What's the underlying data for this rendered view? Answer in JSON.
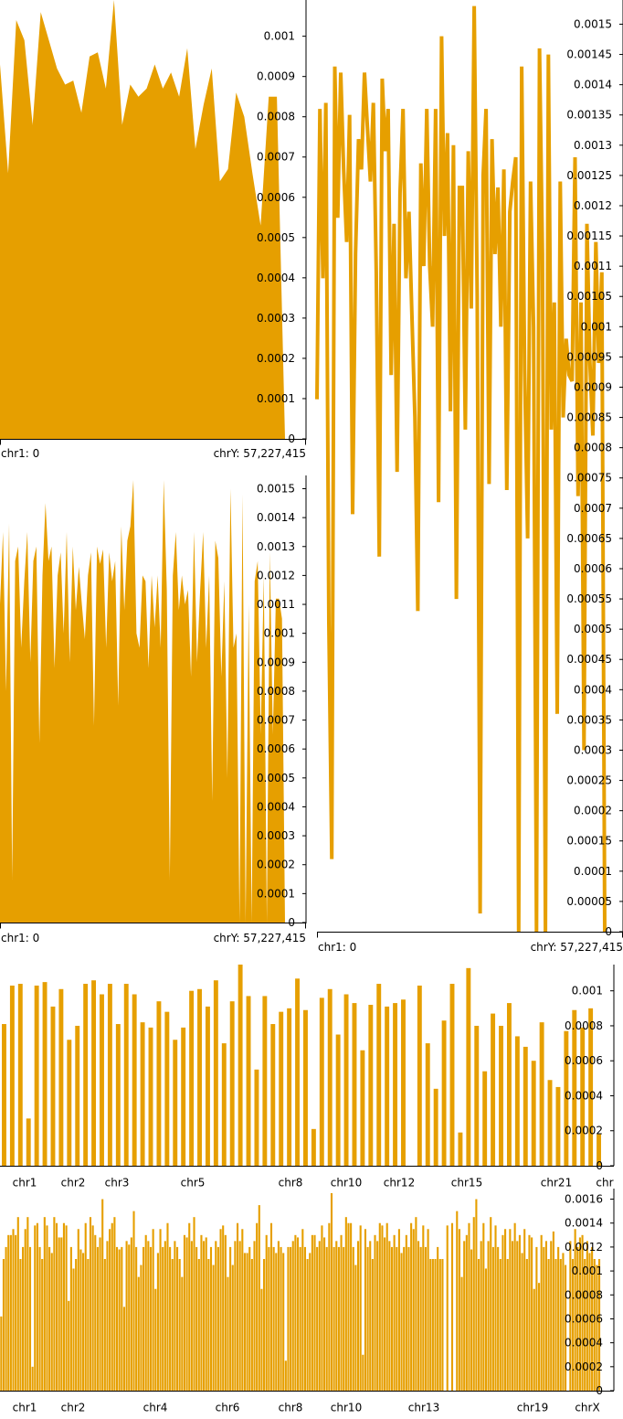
{
  "fill_color": "#e69f00",
  "axis_color": "#000000",
  "chart_data": [
    {
      "id": "area-top-left",
      "type": "area",
      "title": "",
      "xlabel": "",
      "ylabel": "",
      "ylim": [
        0,
        0.00109
      ],
      "x_range_labels": {
        "start": "chr1: 0",
        "end": "chrY: 57,227,415"
      },
      "y_ticks": [
        0,
        0.0001,
        0.0002,
        0.0003,
        0.0004,
        0.0005,
        0.0006,
        0.0007,
        0.0008,
        0.0009,
        0.001
      ],
      "y_tick_labels": [
        "0",
        "0.0001",
        "0.0002",
        "0.0003",
        "0.0004",
        "0.0005",
        "0.0006",
        "0.0007",
        "0.0008",
        "0.0009",
        "0.001"
      ],
      "values": [
        0.00093,
        0.00066,
        0.00104,
        0.00099,
        0.00078,
        0.00106,
        0.00099,
        0.00092,
        0.00088,
        0.00089,
        0.00081,
        0.00095,
        0.00096,
        0.00087,
        0.00109,
        0.00078,
        0.00088,
        0.00085,
        0.00087,
        0.00093,
        0.00087,
        0.00091,
        0.00085,
        0.00097,
        0.00072,
        0.00083,
        0.00092,
        0.00064,
        0.00067,
        0.00086,
        0.0008,
        0.00066,
        0.00053,
        0.00085,
        0.00085,
        0.0
      ]
    },
    {
      "id": "area-mid-left",
      "type": "area",
      "title": "",
      "xlabel": "",
      "ylabel": "",
      "ylim": [
        0,
        0.00153
      ],
      "x_range_labels": {
        "start": "chr1: 0",
        "end": "chrY: 57,227,415"
      },
      "y_ticks": [
        0,
        0.0001,
        0.0002,
        0.0003,
        0.0004,
        0.0005,
        0.0006,
        0.0007,
        0.0008,
        0.0009,
        0.001,
        0.0011,
        0.0012,
        0.0013,
        0.0014,
        0.0015
      ],
      "y_tick_labels": [
        "0",
        "0.0001",
        "0.0002",
        "0.0003",
        "0.0004",
        "0.0005",
        "0.0006",
        "0.0007",
        "0.0008",
        "0.0009",
        "0.001",
        "0.0011",
        "0.0012",
        "0.0013",
        "0.0014",
        "0.0015"
      ],
      "values": [
        0.0011,
        0.00135,
        0.0008,
        0.00138,
        0.00015,
        0.00125,
        0.0013,
        0.00095,
        0.00118,
        0.00135,
        0.0009,
        0.00125,
        0.0013,
        0.00062,
        0.0012,
        0.00145,
        0.00125,
        0.0013,
        0.00088,
        0.0012,
        0.00128,
        0.001,
        0.00135,
        0.0009,
        0.0013,
        0.00108,
        0.00123,
        0.0011,
        0.00098,
        0.0012,
        0.00128,
        0.00068,
        0.0013,
        0.00124,
        0.00129,
        0.00095,
        0.00128,
        0.00118,
        0.00125,
        0.00075,
        0.00137,
        0.00108,
        0.00132,
        0.00137,
        0.00153,
        0.001,
        0.00095,
        0.0012,
        0.00118,
        0.00088,
        0.0012,
        0.00102,
        0.0012,
        0.00095,
        0.00153,
        0.00115,
        0.00015,
        0.0012,
        0.00135,
        0.00108,
        0.0012,
        0.0011,
        0.00115,
        0.00085,
        0.00135,
        0.0009,
        0.00115,
        0.00135,
        0.00095,
        0.0012,
        0.00042,
        0.00132,
        0.00126,
        0.00085,
        0.00118,
        0.0005,
        0.0015,
        0.00095,
        0.001,
        0.0,
        0.00148,
        0.0,
        0.0011,
        0.0,
        0.00118,
        0.00125,
        0.00065,
        0.0012,
        0.0,
        0.00128,
        0.00065,
        0.00112,
        0.00112,
        0.00105,
        0.0
      ]
    },
    {
      "id": "line-right",
      "type": "line",
      "title": "",
      "xlabel": "",
      "ylabel": "",
      "ylim": [
        0,
        0.00154
      ],
      "x_range_labels": {
        "start": "chr1: 0",
        "end": "chrY: 57,227,415"
      },
      "y_ticks": [
        0,
        5e-05,
        0.0001,
        0.00015,
        0.0002,
        0.00025,
        0.0003,
        0.00035,
        0.0004,
        0.00045,
        0.0005,
        0.00055,
        0.0006,
        0.00065,
        0.0007,
        0.00075,
        0.0008,
        0.00085,
        0.0009,
        0.00095,
        0.001,
        0.00105,
        0.0011,
        0.00115,
        0.0012,
        0.00125,
        0.0013,
        0.00135,
        0.0014,
        0.00145,
        0.0015
      ],
      "y_tick_labels": [
        "0",
        "0.00005",
        "0.0001",
        "0.00015",
        "0.0002",
        "0.00025",
        "0.0003",
        "0.00035",
        "0.0004",
        "0.00045",
        "0.0005",
        "0.00055",
        "0.0006",
        "0.00065",
        "0.0007",
        "0.00075",
        "0.0008",
        "0.00085",
        "0.0009",
        "0.00095",
        "0.001",
        "0.00105",
        "0.0011",
        "0.00115",
        "0.0012",
        "0.00125",
        "0.0013",
        "0.00135",
        "0.0014",
        "0.00145",
        "0.0015"
      ],
      "values": [
        0.00088,
        0.00136,
        0.00108,
        0.00137,
        0.00051,
        0.00012,
        0.00143,
        0.00118,
        0.00142,
        0.00126,
        0.00114,
        0.00135,
        0.00069,
        0.00112,
        0.00131,
        0.00126,
        0.00142,
        0.00133,
        0.00124,
        0.00137,
        0.00109,
        0.00062,
        0.00141,
        0.00129,
        0.00136,
        0.00092,
        0.00117,
        0.00076,
        0.00122,
        0.00136,
        0.00108,
        0.00119,
        0.00102,
        0.00085,
        0.00053,
        0.00127,
        0.0011,
        0.00136,
        0.0011,
        0.001,
        0.00136,
        0.00071,
        0.00148,
        0.00115,
        0.00132,
        0.00086,
        0.0013,
        0.00055,
        0.00123,
        0.00123,
        0.00083,
        0.00129,
        0.00103,
        0.00153,
        0.00105,
        3e-05,
        0.00125,
        0.00136,
        0.00074,
        0.00131,
        0.00112,
        0.00123,
        0.001,
        0.00126,
        0.00073,
        0.00119,
        0.00124,
        0.00128,
        0.0,
        0.00143,
        0.00093,
        0.00065,
        0.00124,
        0.001,
        0.0,
        0.00146,
        0.00112,
        0.0,
        0.00145,
        0.00083,
        0.00104,
        0.00036,
        0.00124,
        0.00085,
        0.00098,
        0.00092,
        0.00091,
        0.00128,
        0.00072,
        0.00104,
        0.0003,
        0.00117,
        0.00094,
        0.00082,
        0.00114,
        0.00094,
        0.00109,
        0.0
      ]
    },
    {
      "id": "bar-chrom-coarse",
      "type": "bar",
      "title": "",
      "xlabel": "",
      "ylabel": "",
      "ylim": [
        0,
        0.00115
      ],
      "x_tick_labels": [
        "chr1",
        "chr2",
        "chr3",
        "chr5",
        "chr8",
        "chr10",
        "chr12",
        "chr15",
        "chr21",
        "chr"
      ],
      "y_ticks": [
        0,
        0.0002,
        0.0004,
        0.0006,
        0.0008,
        0.001
      ],
      "y_tick_labels": [
        "0",
        "0.0002",
        "0.0004",
        "0.0006",
        "0.0008",
        "0.001"
      ],
      "values": [
        0.00081,
        0.00103,
        0.00104,
        0.00027,
        0.00103,
        0.00105,
        0.00091,
        0.00101,
        0.00072,
        0.0008,
        0.00104,
        0.00106,
        0.00098,
        0.00104,
        0.00081,
        0.00104,
        0.00098,
        0.00082,
        0.00079,
        0.00094,
        0.00088,
        0.00072,
        0.00079,
        0.001,
        0.00101,
        0.00091,
        0.00106,
        0.0007,
        0.00094,
        0.00115,
        0.00097,
        0.00055,
        0.00097,
        0.00081,
        0.00088,
        0.0009,
        0.00107,
        0.00089,
        0.00021,
        0.00096,
        0.00101,
        0.00075,
        0.00098,
        0.00093,
        0.00066,
        0.00092,
        0.00104,
        0.00091,
        0.00093,
        0.00095,
        0.0,
        0.00103,
        0.0007,
        0.00044,
        0.00083,
        0.00104,
        0.00019,
        0.00113,
        0.0008,
        0.00054,
        0.00087,
        0.0008,
        0.00093,
        0.00074,
        0.00068,
        0.0006,
        0.00082,
        0.00049,
        0.00045,
        0.00077,
        0.00089,
        0.00079,
        0.0009,
        0.00018
      ]
    },
    {
      "id": "bar-chrom-fine",
      "type": "bar",
      "title": "",
      "xlabel": "",
      "ylabel": "",
      "ylim": [
        0,
        0.00165
      ],
      "x_tick_labels": [
        "chr1",
        "chr2",
        "chr4",
        "chr6",
        "chr8",
        "chr10",
        "chr13",
        "chr19",
        "chrX"
      ],
      "y_ticks": [
        0,
        0.0002,
        0.0004,
        0.0006,
        0.0008,
        0.001,
        0.0012,
        0.0014,
        0.0016
      ],
      "y_tick_labels": [
        "0",
        "0.0002",
        "0.0004",
        "0.0006",
        "0.0008",
        "0.001",
        "0.0012",
        "0.0014",
        "0.0016"
      ],
      "values": [
        0.00062,
        0.0011,
        0.0012,
        0.0013,
        0.0013,
        0.00135,
        0.0013,
        0.00145,
        0.0011,
        0.0012,
        0.00135,
        0.00145,
        0.0012,
        0.0002,
        0.00138,
        0.0014,
        0.0012,
        0.0011,
        0.00145,
        0.00138,
        0.0012,
        0.00115,
        0.00145,
        0.0014,
        0.00128,
        0.00128,
        0.0014,
        0.00138,
        0.00075,
        0.0012,
        0.00102,
        0.0011,
        0.00135,
        0.00118,
        0.00115,
        0.0014,
        0.0011,
        0.00145,
        0.00138,
        0.0013,
        0.0012,
        0.00128,
        0.0016,
        0.0011,
        0.00125,
        0.00135,
        0.0014,
        0.00145,
        0.0012,
        0.00118,
        0.0012,
        0.0007,
        0.00125,
        0.00122,
        0.00128,
        0.0015,
        0.0012,
        0.00095,
        0.00105,
        0.0012,
        0.0013,
        0.00125,
        0.0012,
        0.00135,
        0.00085,
        0.00115,
        0.00135,
        0.0012,
        0.00125,
        0.0014,
        0.0012,
        0.0011,
        0.00125,
        0.0012,
        0.0011,
        0.00095,
        0.0013,
        0.00128,
        0.0014,
        0.00125,
        0.00145,
        0.0012,
        0.0011,
        0.0013,
        0.00125,
        0.00128,
        0.0011,
        0.0012,
        0.00105,
        0.00125,
        0.0012,
        0.00135,
        0.00138,
        0.0013,
        0.00095,
        0.0012,
        0.00105,
        0.00125,
        0.0014,
        0.00125,
        0.00135,
        0.00115,
        0.00115,
        0.0012,
        0.0011,
        0.00125,
        0.0014,
        0.00155,
        0.00085,
        0.0011,
        0.0013,
        0.0012,
        0.0014,
        0.0012,
        0.00115,
        0.00125,
        0.0012,
        0.00115,
        0.00025,
        0.0012,
        0.0012,
        0.00125,
        0.0013,
        0.00128,
        0.0012,
        0.00135,
        0.0012,
        0.0011,
        0.00115,
        0.0013,
        0.0013,
        0.0012,
        0.00125,
        0.00138,
        0.00128,
        0.0012,
        0.0014,
        0.00165,
        0.0012,
        0.00125,
        0.0012,
        0.0013,
        0.0012,
        0.00145,
        0.0014,
        0.0014,
        0.0012,
        0.00105,
        0.00125,
        0.00138,
        0.0003,
        0.00135,
        0.0012,
        0.00125,
        0.0011,
        0.0013,
        0.00125,
        0.0014,
        0.00138,
        0.00128,
        0.0014,
        0.00125,
        0.0012,
        0.0013,
        0.0012,
        0.00135,
        0.00115,
        0.0012,
        0.0013,
        0.0012,
        0.0014,
        0.00135,
        0.00145,
        0.00125,
        0.0012,
        0.00138,
        0.0012,
        0.00135,
        0.0011,
        0.0011,
        0.0011,
        0.0012,
        0.0011,
        0.0011,
        0.0,
        0.00138,
        0.0,
        0.0014,
        0.0,
        0.0015,
        0.00135,
        0.00095,
        0.00125,
        0.0013,
        0.0014,
        0.00118,
        0.00145,
        0.0016,
        0.0011,
        0.00125,
        0.0014,
        0.00102,
        0.00125,
        0.00145,
        0.0012,
        0.00138,
        0.0012,
        0.0011,
        0.0013,
        0.00135,
        0.0011,
        0.00135,
        0.00125,
        0.0014,
        0.00125,
        0.0013,
        0.00115,
        0.00135,
        0.0011,
        0.0013,
        0.00128,
        0.00085,
        0.0012,
        0.0009,
        0.0013,
        0.0012,
        0.00125,
        0.0011,
        0.00125,
        0.00133,
        0.0011,
        0.0012,
        0.0011,
        0.00115,
        0.00105,
        0.0,
        0.00125,
        0.0011,
        0.00135,
        0.0012,
        0.00128,
        0.0013,
        0.0011,
        0.00125,
        0.00115,
        0.0012,
        0.0011,
        0.00105,
        0.0011,
        0.0
      ]
    }
  ]
}
